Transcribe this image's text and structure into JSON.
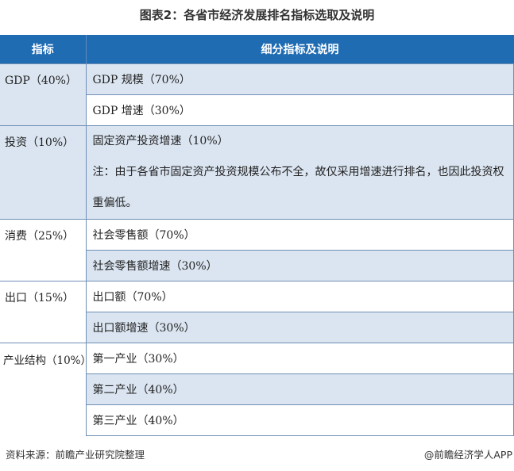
{
  "title": "图表2：各省市经济发展排名指标选取及说明",
  "headers": [
    "指标",
    "细分指标及说明"
  ],
  "rows": [
    {
      "indicator": "GDP（40%）",
      "subs": [
        "GDP 规模（70%）",
        "GDP 增速（30%）"
      ]
    },
    {
      "indicator": "投资（10%）",
      "subs": [
        "固定资产投资增速（10%）",
        "注：由于各省市固定资产投资规模公布不全，故仅采用增速进行排名，也因此投资权重偏低。"
      ]
    },
    {
      "indicator": "消费（25%）",
      "subs": [
        "社会零售额（70%）",
        "社会零售额增速（30%）"
      ]
    },
    {
      "indicator": "出口（15%）",
      "subs": [
        "出口额（70%）",
        "出口额增速（30%）"
      ]
    },
    {
      "indicator": "产业结构（10%）",
      "subs": [
        "第一产业（30%）",
        "第二产业（40%）",
        "第三产业（40%）"
      ]
    }
  ],
  "footer": {
    "source": "资料来源：前瞻产业研究院整理",
    "brand": "@前瞻经济学人APP"
  },
  "colors": {
    "header": "#1f6cb3",
    "stripe": "#dbe5f1"
  }
}
